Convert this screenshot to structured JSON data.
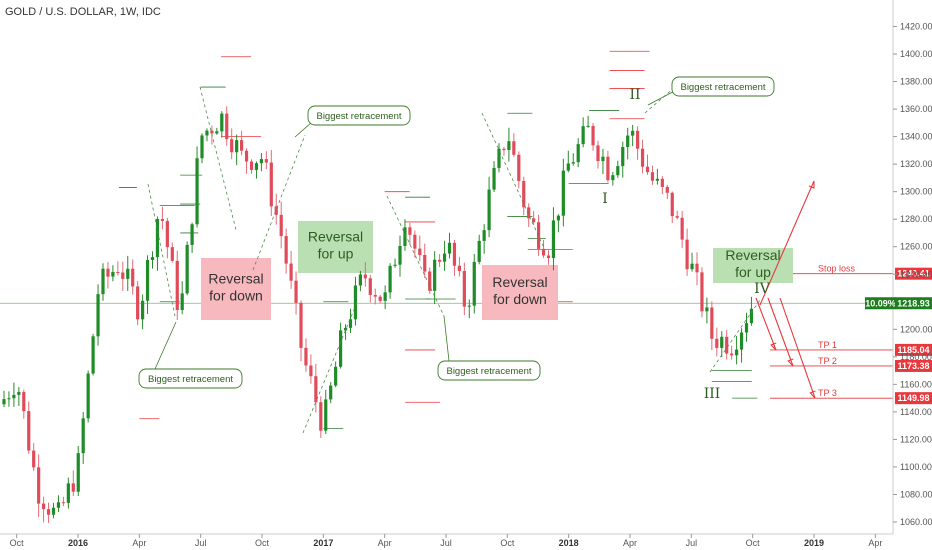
{
  "header": {
    "title": "GOLD / U.S. DOLLAR, 1W, IDC"
  },
  "colors": {
    "up": "#26a69a",
    "up_body": "#1e8c27",
    "down": "#e04b5a",
    "level_red": "#e8383d",
    "level_green": "#2e7d32",
    "note_border": "#3b7a2a",
    "reversal_down_bg": "#f7b9bd",
    "reversal_up_bg": "#b9dfb3",
    "current_price_bg": "#1e7d1e"
  },
  "chart_data": {
    "type": "candlestick",
    "title": "GOLD / U.S. DOLLAR, 1W, IDC",
    "ylim": [
      1050,
      1425
    ],
    "y_ticks": [
      1060,
      1080,
      1100,
      1120,
      1140,
      1160,
      1180,
      1200,
      1220,
      1240,
      1260,
      1280,
      1300,
      1320,
      1340,
      1360,
      1380,
      1400,
      1420
    ],
    "y_tick_labels": [
      "1060.00",
      "1080.00",
      "1100.00",
      "1120.00",
      "1140.00",
      "1160.00",
      "1180.00",
      "1200.00",
      "1220.00",
      "1240.00",
      "1260.00",
      "1280.00",
      "1300.00",
      "1320.00",
      "1340.00",
      "1360.00",
      "1380.00",
      "1400.00",
      "1420.00"
    ],
    "x_ticks": [
      {
        "label": "Oct",
        "date": "2015-10",
        "bold": false
      },
      {
        "label": "2016",
        "date": "2016-01",
        "bold": true
      },
      {
        "label": "Apr",
        "date": "2016-04",
        "bold": false
      },
      {
        "label": "Jul",
        "date": "2016-07",
        "bold": false
      },
      {
        "label": "Oct",
        "date": "2016-10",
        "bold": false
      },
      {
        "label": "2017",
        "date": "2017-01",
        "bold": true
      },
      {
        "label": "Apr",
        "date": "2017-04",
        "bold": false
      },
      {
        "label": "Jul",
        "date": "2017-07",
        "bold": false
      },
      {
        "label": "Oct",
        "date": "2017-10",
        "bold": false
      },
      {
        "label": "2018",
        "date": "2018-01",
        "bold": true
      },
      {
        "label": "Apr",
        "date": "2018-04",
        "bold": false
      },
      {
        "label": "Jul",
        "date": "2018-07",
        "bold": false
      },
      {
        "label": "Oct",
        "date": "2018-10",
        "bold": false
      },
      {
        "label": "2019",
        "date": "2019-01",
        "bold": true
      },
      {
        "label": "Apr",
        "date": "2019-04",
        "bold": false
      }
    ],
    "close_path": [
      [
        "2015-08",
        1120
      ],
      [
        "2015-09",
        1140
      ],
      [
        "2015-10",
        1165
      ],
      [
        "2015-11",
        1085
      ],
      [
        "2015-12",
        1062
      ],
      [
        "2016-01",
        1100
      ],
      [
        "2016-02",
        1230
      ],
      [
        "2016-03",
        1248
      ],
      [
        "2016-04",
        1215
      ],
      [
        "2016-05",
        1290
      ],
      [
        "2016-06",
        1210
      ],
      [
        "2016-07",
        1340
      ],
      [
        "2016-08",
        1355
      ],
      [
        "2016-09",
        1325
      ],
      [
        "2016-10",
        1325
      ],
      [
        "2016-11",
        1265
      ],
      [
        "2016-12",
        1180
      ],
      [
        "2017-01",
        1130
      ],
      [
        "2017-02",
        1200
      ],
      [
        "2017-03",
        1240
      ],
      [
        "2017-04",
        1220
      ],
      [
        "2017-05",
        1285
      ],
      [
        "2017-06",
        1230
      ],
      [
        "2017-07",
        1265
      ],
      [
        "2017-08",
        1215
      ],
      [
        "2017-09",
        1290
      ],
      [
        "2017-10",
        1345
      ],
      [
        "2017-11",
        1280
      ],
      [
        "2017-12",
        1260
      ],
      [
        "2018-01",
        1320
      ],
      [
        "2018-02",
        1345
      ],
      [
        "2018-03",
        1315
      ],
      [
        "2018-04",
        1345
      ],
      [
        "2018-05",
        1310
      ],
      [
        "2018-06",
        1290
      ],
      [
        "2018-07",
        1245
      ],
      [
        "2018-08",
        1195
      ],
      [
        "2018-09",
        1190
      ],
      [
        "2018-10",
        1218.93
      ]
    ],
    "current_price": 1218.93,
    "current_change": "10.09%",
    "levels": [
      {
        "name": "Stop loss",
        "value": 1240.41,
        "label": "1240.41"
      },
      {
        "name": "TP 1",
        "value": 1185.04,
        "label": "1185.04"
      },
      {
        "name": "TP 2",
        "value": 1173.38,
        "label": "1173.38"
      },
      {
        "name": "TP 3",
        "value": 1149.98,
        "label": "1149.98"
      }
    ],
    "annotations": {
      "biggest_retracement": "Biggest retracement",
      "reversal_for_down": [
        "Reversal",
        "for down"
      ],
      "reversal_for_up": [
        "Reversal",
        "for up"
      ],
      "reversal_for_up_small": [
        "Reversal",
        "for up"
      ],
      "wave_labels": [
        "I",
        "II",
        "III",
        "IV"
      ]
    },
    "grid": false,
    "legend": "none"
  }
}
